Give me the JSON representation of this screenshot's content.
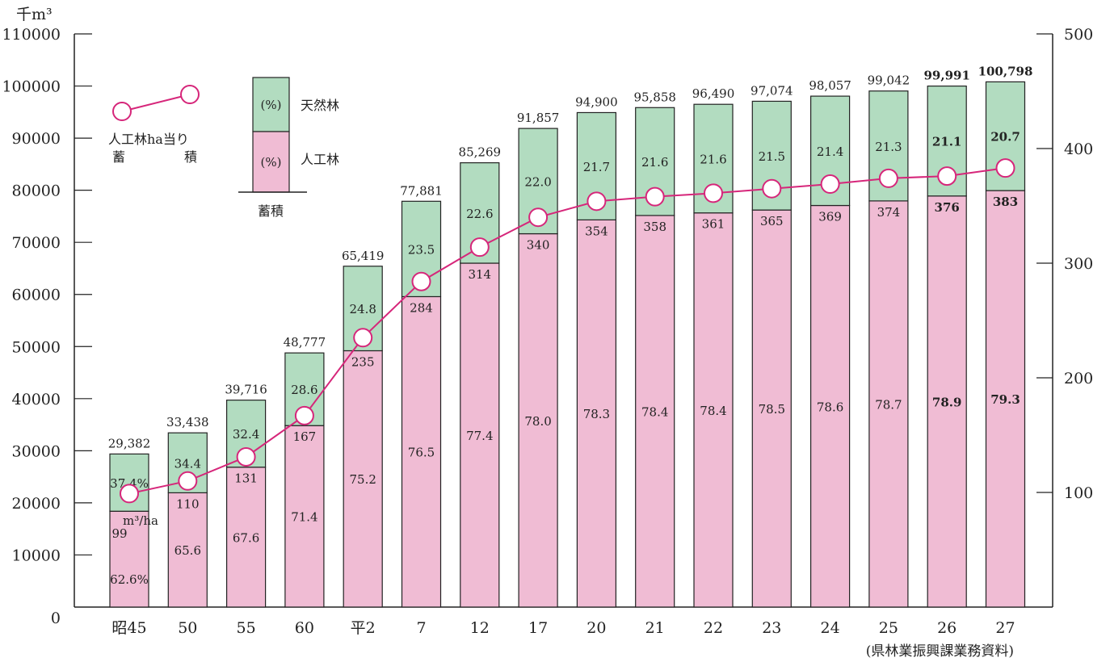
{
  "chart_data": {
    "type": "bar",
    "stacked": true,
    "left_axis": {
      "unit": "千m³",
      "ylim": [
        0,
        110000
      ],
      "ticks": [
        "0",
        "10000",
        "20000",
        "30000",
        "40000",
        "50000",
        "60000",
        "70000",
        "80000",
        "90000",
        "100000",
        "110000"
      ],
      "tick_values": [
        0,
        10000,
        20000,
        30000,
        40000,
        50000,
        60000,
        70000,
        80000,
        90000,
        100000,
        110000
      ]
    },
    "right_axis": {
      "ylim": [
        0,
        500
      ],
      "ticks": [
        "100",
        "200",
        "300",
        "400",
        "500"
      ],
      "tick_values": [
        100,
        200,
        300,
        400,
        500
      ]
    },
    "categories": [
      "昭45",
      "50",
      "55",
      "60",
      "平2",
      "7",
      "12",
      "17",
      "20",
      "21",
      "22",
      "23",
      "24",
      "25",
      "26",
      "27"
    ],
    "totals": [
      29382,
      33438,
      39716,
      48777,
      65419,
      77881,
      85269,
      91857,
      94900,
      95858,
      96490,
      97074,
      98057,
      99042,
      99991,
      100798
    ],
    "total_labels": [
      "29,382",
      "33,438",
      "39,716",
      "48,777",
      "65,419",
      "77,881",
      "85,269",
      "91,857",
      "94,900",
      "95,858",
      "96,490",
      "97,074",
      "98,057",
      "99,042",
      "99,991",
      "100,798"
    ],
    "series": [
      {
        "name": "人工林",
        "color": "#f0bcd4",
        "pct_values": [
          62.6,
          65.6,
          67.6,
          71.4,
          75.2,
          76.5,
          77.4,
          78.0,
          78.3,
          78.4,
          78.4,
          78.5,
          78.6,
          78.7,
          78.9,
          79.3
        ],
        "pct_labels": [
          "62.6%",
          "65.6",
          "67.6",
          "71.4",
          "75.2",
          "76.5",
          "77.4",
          "78.0",
          "78.3",
          "78.4",
          "78.4",
          "78.5",
          "78.6",
          "78.7",
          "78.9",
          "79.3"
        ]
      },
      {
        "name": "天然林",
        "color": "#b2dcc0",
        "pct_values": [
          37.4,
          34.4,
          32.4,
          28.6,
          24.8,
          23.5,
          22.6,
          22.0,
          21.7,
          21.6,
          21.6,
          21.5,
          21.4,
          21.3,
          21.1,
          20.7
        ],
        "pct_labels": [
          "37.4%",
          "34.4",
          "32.4",
          "28.6",
          "24.8",
          "23.5",
          "22.6",
          "22.0",
          "21.7",
          "21.6",
          "21.6",
          "21.5",
          "21.4",
          "21.3",
          "21.1",
          "20.7"
        ]
      }
    ],
    "line_series": {
      "name": "人工林ha当り蓄積",
      "axis": "right",
      "color": "#d6267a",
      "values": [
        99,
        110,
        131,
        167,
        235,
        284,
        314,
        340,
        354,
        358,
        361,
        365,
        369,
        374,
        376,
        383
      ],
      "labels": [
        "99",
        "110",
        "131",
        "167",
        "235",
        "284",
        "314",
        "340",
        "354",
        "358",
        "361",
        "365",
        "369",
        "374",
        "376",
        "383"
      ],
      "first_label_unit": "m³/ha"
    },
    "bold_categories_from_index": 14,
    "legend": {
      "line_label_1": "人工林ha当り",
      "line_label_2a": "蓄",
      "line_label_2b": "積",
      "box_pct_top": "(%)",
      "box_pct_bottom": "(%)",
      "box_label_top": "天然林",
      "box_label_bottom": "人工林",
      "box_caption": "蓄積"
    },
    "source": "(県林業振興課業務資料)"
  }
}
